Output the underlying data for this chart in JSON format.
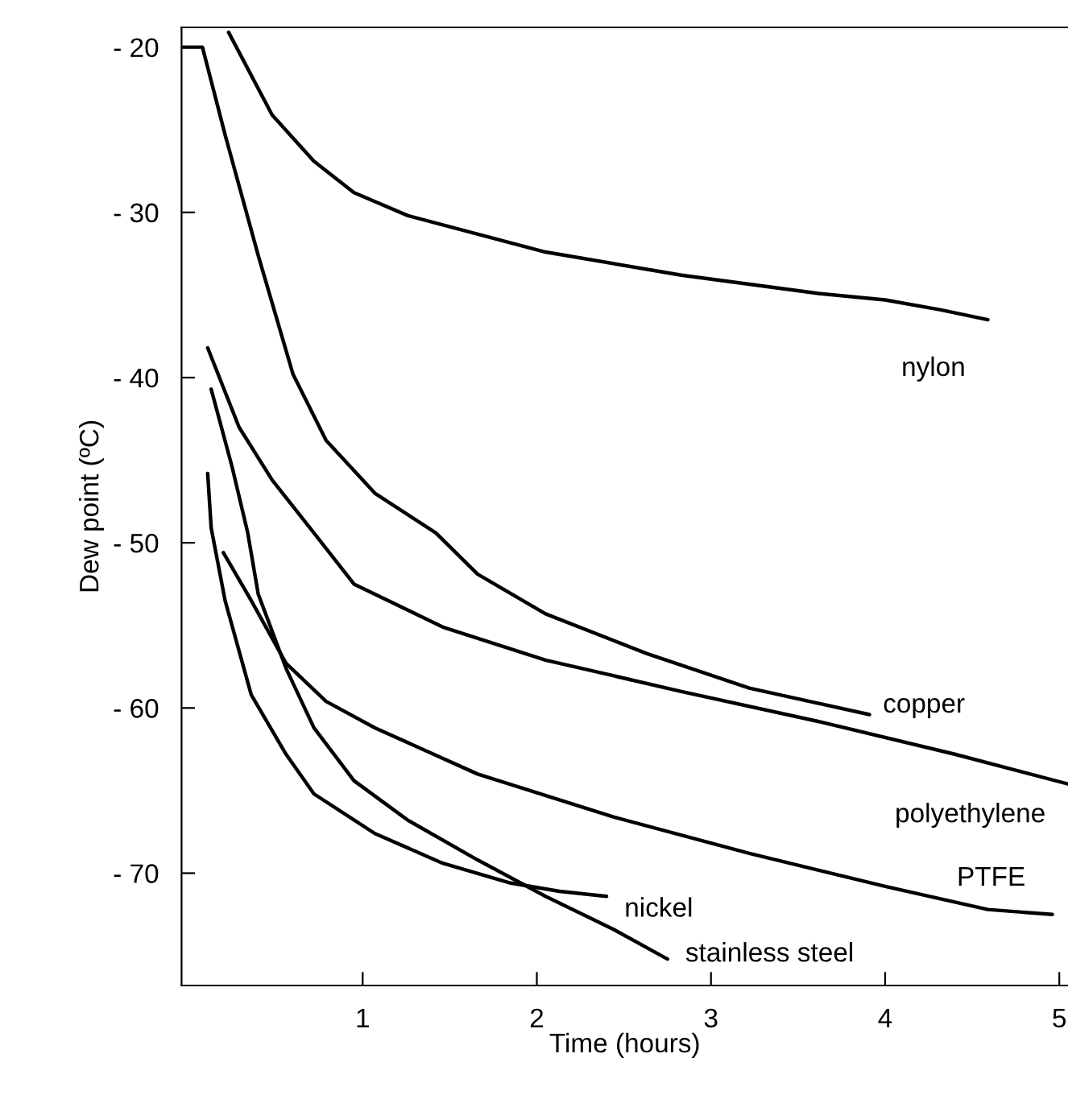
{
  "chart_data": {
    "type": "line",
    "xlabel": "Time (hours)",
    "ylabel": "Dew point (ºC)",
    "xlim": [
      -0.04,
      5.05
    ],
    "ylim": [
      -76.8,
      -18.8
    ],
    "xticks": [
      1,
      2,
      3,
      4,
      5
    ],
    "yticks": [
      {
        "value": -20,
        "label": "- 20"
      },
      {
        "value": -30,
        "label": "- 30"
      },
      {
        "value": -40,
        "label": "- 40"
      },
      {
        "value": -50,
        "label": "- 50"
      },
      {
        "value": -60,
        "label": "- 60"
      },
      {
        "value": -70,
        "label": "- 70"
      }
    ],
    "grid": false,
    "legend": false,
    "marker": "none",
    "line_style": "solid",
    "series": [
      {
        "name": "nylon",
        "color": "#000000",
        "x": [
          0.23,
          0.48,
          0.72,
          0.95,
          1.26,
          2.05,
          2.83,
          3.61,
          4.0,
          4.32,
          4.59
        ],
        "values": [
          -19.1,
          -24.1,
          -26.9,
          -28.8,
          -30.2,
          -32.4,
          -33.8,
          -34.9,
          -35.3,
          -35.9,
          -36.5
        ]
      },
      {
        "name": "copper",
        "color": "#000000",
        "x": [
          -0.04,
          0.08,
          0.21,
          0.4,
          0.6,
          0.79,
          1.07,
          1.42,
          1.66,
          2.05,
          2.63,
          3.22,
          3.91
        ],
        "values": [
          -20,
          -20,
          -25.3,
          -32.6,
          -39.8,
          -43.8,
          -47.0,
          -49.4,
          -51.9,
          -54.3,
          -56.7,
          -58.8,
          -60.4
        ]
      },
      {
        "name": "polyethylene",
        "color": "#000000",
        "x": [
          0.11,
          0.29,
          0.48,
          0.72,
          0.95,
          1.46,
          2.05,
          2.83,
          3.61,
          4.4,
          5.05
        ],
        "values": [
          -38.2,
          -43.0,
          -46.2,
          -49.4,
          -52.5,
          -55.1,
          -57.1,
          -59.0,
          -60.8,
          -62.8,
          -64.6
        ]
      },
      {
        "name": "PTFE",
        "color": "#000000",
        "x": [
          0.2,
          0.36,
          0.56,
          0.79,
          1.07,
          1.66,
          2.44,
          3.22,
          4.0,
          4.59,
          4.96
        ],
        "values": [
          -50.6,
          -53.5,
          -57.3,
          -59.6,
          -61.2,
          -64.0,
          -66.6,
          -68.8,
          -70.8,
          -72.2,
          -72.5
        ]
      },
      {
        "name": "nickel",
        "color": "#000000",
        "x": [
          0.11,
          0.13,
          0.21,
          0.36,
          0.56,
          0.72,
          1.07,
          1.46,
          1.85,
          2.13,
          2.4
        ],
        "values": [
          -45.8,
          -49.1,
          -53.5,
          -59.2,
          -62.8,
          -65.2,
          -67.6,
          -69.4,
          -70.6,
          -71.1,
          -71.4
        ]
      },
      {
        "name": "stainless steel",
        "color": "#000000",
        "x": [
          0.13,
          0.25,
          0.34,
          0.4,
          0.56,
          0.72,
          0.95,
          1.26,
          1.66,
          2.05,
          2.44,
          2.75
        ],
        "values": [
          -40.7,
          -45.4,
          -49.4,
          -53.1,
          -57.6,
          -61.2,
          -64.4,
          -66.8,
          -69.2,
          -71.4,
          -73.4,
          -75.2
        ]
      }
    ]
  }
}
